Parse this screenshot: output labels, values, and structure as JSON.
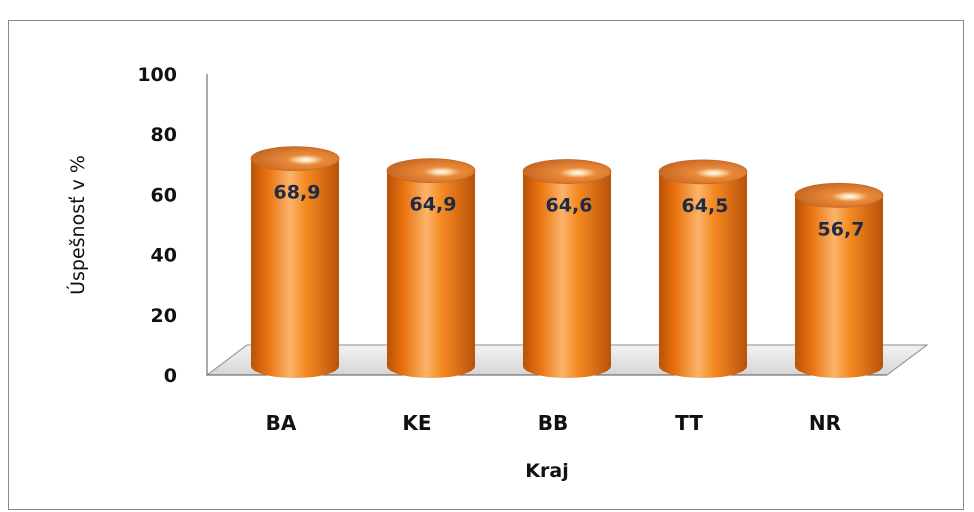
{
  "chart_data": {
    "type": "bar",
    "title": "",
    "xlabel": "Kraj",
    "ylabel": "Úspešnosť v %",
    "categories": [
      "BA",
      "KE",
      "BB",
      "TT",
      "NR"
    ],
    "values": [
      68.9,
      64.9,
      64.6,
      64.5,
      56.7
    ],
    "data_labels": [
      "68,9",
      "64,9",
      "64,6",
      "64,5",
      "56,7"
    ],
    "ylim": [
      0,
      100
    ],
    "yticks": [
      "0",
      "20",
      "40",
      "60",
      "80",
      "100"
    ],
    "grid": false,
    "legend": "none",
    "style": "3d-cylinder",
    "colors": {
      "bar": "#f07a10",
      "bar_dark": "#b9520a",
      "bar_light": "#fbb46a",
      "top": "#d9782c",
      "floor": "#e6e6e6"
    }
  }
}
